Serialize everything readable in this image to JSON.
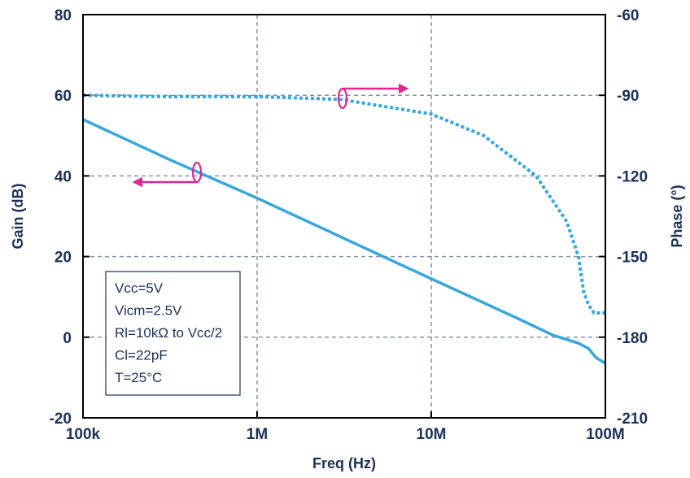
{
  "chart_data": {
    "type": "line",
    "title": "",
    "xlabel": "Freq (Hz)",
    "ylabel": "Gain (dB)",
    "y2label": "Phase (°)",
    "x_scale": "log",
    "xlim": [
      100000,
      100000000
    ],
    "ylim": [
      -20,
      80
    ],
    "y2lim": [
      -210,
      -60
    ],
    "x_ticks": [
      {
        "value": 100000,
        "label": "100k"
      },
      {
        "value": 1000000,
        "label": "1M"
      },
      {
        "value": 10000000,
        "label": "10M"
      },
      {
        "value": 100000000,
        "label": "100M"
      }
    ],
    "y_ticks": [
      {
        "value": -20,
        "label": "-20"
      },
      {
        "value": 0,
        "label": "0"
      },
      {
        "value": 20,
        "label": "20"
      },
      {
        "value": 40,
        "label": "40"
      },
      {
        "value": 60,
        "label": "60"
      },
      {
        "value": 80,
        "label": "80"
      }
    ],
    "y2_ticks": [
      {
        "value": -210,
        "label": "-210"
      },
      {
        "value": -180,
        "label": "-180"
      },
      {
        "value": -150,
        "label": "-150"
      },
      {
        "value": -120,
        "label": "-120"
      },
      {
        "value": -90,
        "label": "-90"
      },
      {
        "value": -60,
        "label": "-60"
      }
    ],
    "grid": true,
    "series": [
      {
        "axis": "left",
        "line_style": "solid",
        "color": "#3aa7db",
        "points": [
          [
            100000,
            54
          ],
          [
            316000,
            44
          ],
          [
            1000000,
            34.5
          ],
          [
            3160000,
            24.5
          ],
          [
            10000000,
            14.5
          ],
          [
            31600000,
            4.6
          ],
          [
            50000000,
            0.5
          ],
          [
            70000000,
            -1.5
          ],
          [
            80000000,
            -2.8
          ],
          [
            88000000,
            -5
          ],
          [
            100000000,
            -6.5
          ]
        ]
      },
      {
        "axis": "right",
        "line_style": "dotted",
        "color": "#3aa7db",
        "points": [
          [
            100000,
            -90
          ],
          [
            300000,
            -90.5
          ],
          [
            1000000,
            -90.5
          ],
          [
            3000000,
            -91.5
          ],
          [
            10000000,
            -97
          ],
          [
            20000000,
            -105
          ],
          [
            40000000,
            -120
          ],
          [
            60000000,
            -137
          ],
          [
            70000000,
            -150
          ],
          [
            75000000,
            -163
          ],
          [
            80000000,
            -168
          ],
          [
            86000000,
            -171
          ],
          [
            100000000,
            -171
          ]
        ]
      }
    ],
    "annotations": [
      {
        "type": "arrow",
        "series_axis": "left",
        "direction": "left",
        "color": "#e0268f"
      },
      {
        "type": "arrow",
        "series_axis": "right",
        "direction": "right",
        "color": "#e0268f"
      }
    ],
    "legend": {
      "placement": "bottom-left",
      "lines": [
        "Vcc=5V",
        "Vicm=2.5V",
        "Rl=10kΩ to Vcc/2",
        "Cl=22pF",
        "T=25°C"
      ]
    }
  }
}
